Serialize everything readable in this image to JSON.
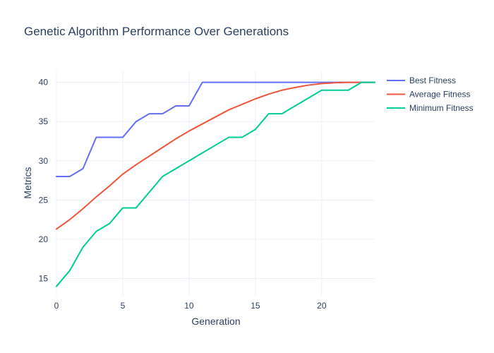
{
  "chart_data": {
    "type": "line",
    "title": "Genetic Algorithm Performance Over Generations",
    "xlabel": "Generation",
    "ylabel": "Metrics",
    "xlim": [
      0,
      24
    ],
    "ylim": [
      12.7,
      41.5
    ],
    "xticks": [
      0,
      5,
      10,
      15,
      20
    ],
    "yticks": [
      15,
      20,
      25,
      30,
      35,
      40
    ],
    "grid": true,
    "legend_position": "top-right",
    "x": [
      0,
      1,
      2,
      3,
      4,
      5,
      6,
      7,
      8,
      9,
      10,
      11,
      12,
      13,
      14,
      15,
      16,
      17,
      18,
      19,
      20,
      21,
      22,
      23,
      24
    ],
    "series": [
      {
        "name": "Best Fitness",
        "color": "#636efa",
        "values": [
          28,
          28,
          29,
          33,
          33,
          33,
          35,
          36,
          36,
          37,
          37,
          40,
          40,
          40,
          40,
          40,
          40,
          40,
          40,
          40,
          40,
          40,
          40,
          40,
          40
        ]
      },
      {
        "name": "Average Fitness",
        "color": "#ef553b",
        "values": [
          21.3,
          22.5,
          23.9,
          25.4,
          26.8,
          28.3,
          29.5,
          30.6,
          31.7,
          32.8,
          33.8,
          34.7,
          35.6,
          36.5,
          37.2,
          37.9,
          38.5,
          39.0,
          39.35,
          39.65,
          39.85,
          39.95,
          40,
          40,
          40
        ]
      },
      {
        "name": "Minimum Fitness",
        "color": "#00cc96",
        "values": [
          14,
          16,
          19,
          21,
          22,
          24,
          24,
          26,
          28,
          29,
          30,
          31,
          32,
          33,
          33,
          34,
          36,
          36,
          37,
          38,
          39,
          39,
          39,
          40,
          40
        ]
      }
    ]
  }
}
